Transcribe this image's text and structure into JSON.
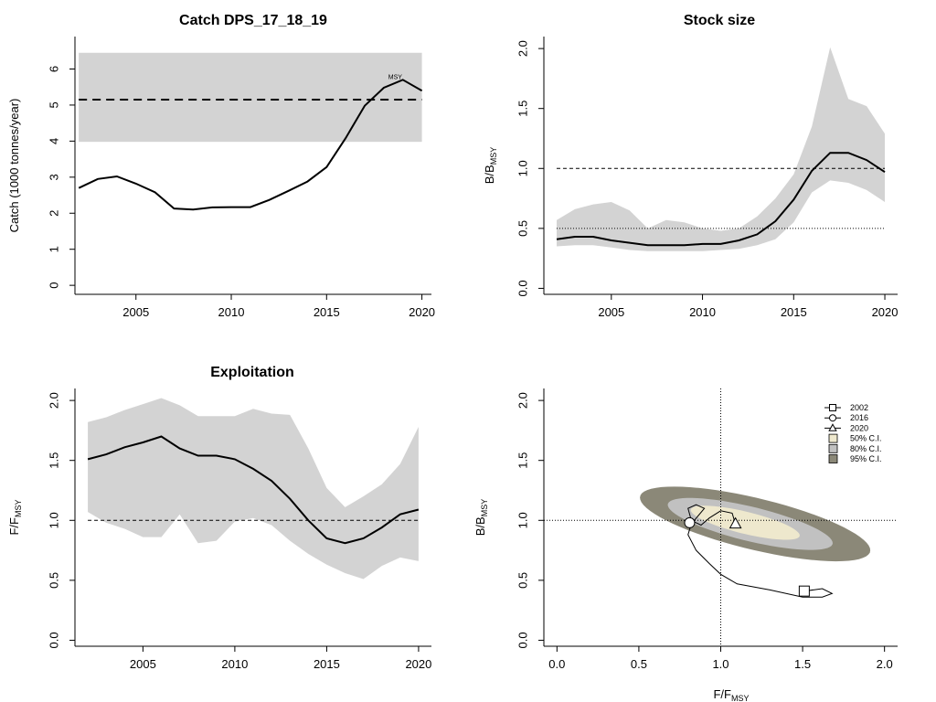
{
  "colors": {
    "band": "#d3d3d3",
    "ci50": "#eee8cd",
    "ci80": "#c1c1c1",
    "ci95": "#8b8878",
    "line": "#000000"
  },
  "chart_data": [
    {
      "id": "catch",
      "type": "line",
      "title": "Catch DPS_17_18_19",
      "xlabel": "",
      "ylabel": "Catch (1000 tonnes/year)",
      "xlim": [
        2001.8,
        2020.5
      ],
      "ylim": [
        -0.25,
        6.9
      ],
      "xticks": [
        2005,
        2010,
        2015,
        2020
      ],
      "yticks": [
        0,
        1,
        2,
        3,
        4,
        5,
        6
      ],
      "msy_label": "MSY",
      "msy_line": 5.15,
      "msy_band": [
        3.98,
        6.45
      ],
      "x": [
        2002,
        2003,
        2004,
        2005,
        2006,
        2007,
        2008,
        2009,
        2010,
        2011,
        2012,
        2013,
        2014,
        2015,
        2016,
        2017,
        2018,
        2019,
        2020
      ],
      "values": [
        2.7,
        2.95,
        3.02,
        2.82,
        2.58,
        2.13,
        2.1,
        2.16,
        2.17,
        2.17,
        2.37,
        2.62,
        2.88,
        3.28,
        4.08,
        4.98,
        5.48,
        5.7,
        5.4
      ]
    },
    {
      "id": "stock",
      "type": "line",
      "title": "Stock size",
      "xlabel": "",
      "ylabel_main": "B/B",
      "ylabel_sub": "MSY",
      "xlim": [
        2001.3,
        2020.7
      ],
      "ylim": [
        -0.05,
        2.1
      ],
      "xticks": [
        2005,
        2010,
        2015,
        2020
      ],
      "yticks": [
        0.0,
        0.5,
        1.0,
        1.5,
        2.0
      ],
      "ref_dashed": 1.0,
      "ref_dotted": 0.5,
      "x": [
        2002,
        2003,
        2004,
        2005,
        2006,
        2007,
        2008,
        2009,
        2010,
        2011,
        2012,
        2013,
        2014,
        2015,
        2016,
        2017,
        2018,
        2019,
        2020
      ],
      "values": [
        0.41,
        0.43,
        0.43,
        0.4,
        0.38,
        0.36,
        0.36,
        0.36,
        0.37,
        0.37,
        0.4,
        0.45,
        0.56,
        0.74,
        0.98,
        1.13,
        1.13,
        1.07,
        0.97
      ],
      "upper": [
        0.57,
        0.66,
        0.7,
        0.72,
        0.65,
        0.5,
        0.57,
        0.55,
        0.5,
        0.48,
        0.5,
        0.6,
        0.75,
        0.95,
        1.35,
        2.01,
        1.58,
        1.52,
        1.29
      ],
      "lower": [
        0.35,
        0.36,
        0.36,
        0.34,
        0.32,
        0.31,
        0.31,
        0.31,
        0.31,
        0.32,
        0.33,
        0.36,
        0.41,
        0.55,
        0.8,
        0.9,
        0.88,
        0.82,
        0.72
      ]
    },
    {
      "id": "exploitation",
      "type": "line",
      "title": "Exploitation",
      "xlabel": "",
      "ylabel_main": "F/F",
      "ylabel_sub": "MSY",
      "xlim": [
        2001.3,
        2020.7
      ],
      "ylim": [
        -0.05,
        2.1
      ],
      "xticks": [
        2005,
        2010,
        2015,
        2020
      ],
      "yticks": [
        0.0,
        0.5,
        1.0,
        1.5,
        2.0
      ],
      "ref_dashed": 1.0,
      "x": [
        2002,
        2003,
        2004,
        2005,
        2006,
        2007,
        2008,
        2009,
        2010,
        2011,
        2012,
        2013,
        2014,
        2015,
        2016,
        2017,
        2018,
        2019,
        2020
      ],
      "values": [
        1.51,
        1.55,
        1.61,
        1.65,
        1.7,
        1.6,
        1.54,
        1.54,
        1.51,
        1.43,
        1.33,
        1.18,
        1.0,
        0.85,
        0.81,
        0.85,
        0.94,
        1.05,
        1.09
      ],
      "upper": [
        1.82,
        1.86,
        1.92,
        1.97,
        2.02,
        1.96,
        1.87,
        1.87,
        1.87,
        1.93,
        1.89,
        1.88,
        1.6,
        1.27,
        1.11,
        1.2,
        1.3,
        1.47,
        1.78
      ],
      "lower": [
        1.07,
        0.98,
        0.93,
        0.86,
        0.86,
        1.05,
        0.81,
        0.83,
        0.99,
        1.02,
        0.96,
        0.83,
        0.72,
        0.63,
        0.56,
        0.51,
        0.62,
        0.69,
        0.66
      ]
    },
    {
      "id": "kobe",
      "type": "scatter",
      "title": "",
      "xlabel_main": "F/F",
      "xlabel_sub": "MSY",
      "ylabel_main": "B/B",
      "ylabel_sub": "MSY",
      "xlim": [
        -0.08,
        2.08
      ],
      "ylim": [
        -0.05,
        2.1
      ],
      "xticks": [
        0.0,
        0.5,
        1.0,
        1.5,
        2.0
      ],
      "yticks": [
        0.0,
        0.5,
        1.0,
        1.5,
        2.0
      ],
      "ref_v": 1.0,
      "ref_h": 1.0,
      "trajectory": {
        "x": [
          1.51,
          1.62,
          1.68,
          1.62,
          1.5,
          1.3,
          1.1,
          1.0,
          0.93,
          0.85,
          0.8,
          0.82,
          0.9,
          0.85,
          0.8,
          0.82,
          0.85,
          0.88,
          0.93,
          1.0,
          1.07,
          1.09
        ],
        "y": [
          0.41,
          0.43,
          0.39,
          0.36,
          0.36,
          0.42,
          0.47,
          0.55,
          0.64,
          0.75,
          0.88,
          0.97,
          1.1,
          1.13,
          1.1,
          1.0,
          0.98,
          0.96,
          1.02,
          1.08,
          1.06,
          0.97
        ]
      },
      "markers": [
        {
          "year": "2002",
          "shape": "square",
          "x": 1.51,
          "y": 0.41
        },
        {
          "year": "2016",
          "shape": "circle",
          "x": 0.81,
          "y": 0.98
        },
        {
          "year": "2020",
          "shape": "triangle",
          "x": 1.09,
          "y": 0.97
        }
      ],
      "ellipses": [
        {
          "level": "95% C.I.",
          "cx": 1.21,
          "cy": 0.97,
          "rx": 0.74,
          "ry": 0.21,
          "angle": -0.33
        },
        {
          "level": "80% C.I.",
          "cx": 1.18,
          "cy": 0.97,
          "rx": 0.53,
          "ry": 0.14,
          "angle": -0.33
        },
        {
          "level": "50% C.I.",
          "cx": 1.15,
          "cy": 0.98,
          "rx": 0.35,
          "ry": 0.09,
          "angle": -0.33
        }
      ],
      "legend": {
        "position": "top-right",
        "items": [
          {
            "label": "2002",
            "kind": "marker",
            "shape": "square"
          },
          {
            "label": "2016",
            "kind": "marker",
            "shape": "circle"
          },
          {
            "label": "2020",
            "kind": "marker",
            "shape": "triangle"
          },
          {
            "label": "50% C.I.",
            "kind": "fill",
            "color": "#eee8cd"
          },
          {
            "label": "80% C.I.",
            "kind": "fill",
            "color": "#c1c1c1"
          },
          {
            "label": "95% C.I.",
            "kind": "fill",
            "color": "#8b8878"
          }
        ]
      }
    }
  ]
}
